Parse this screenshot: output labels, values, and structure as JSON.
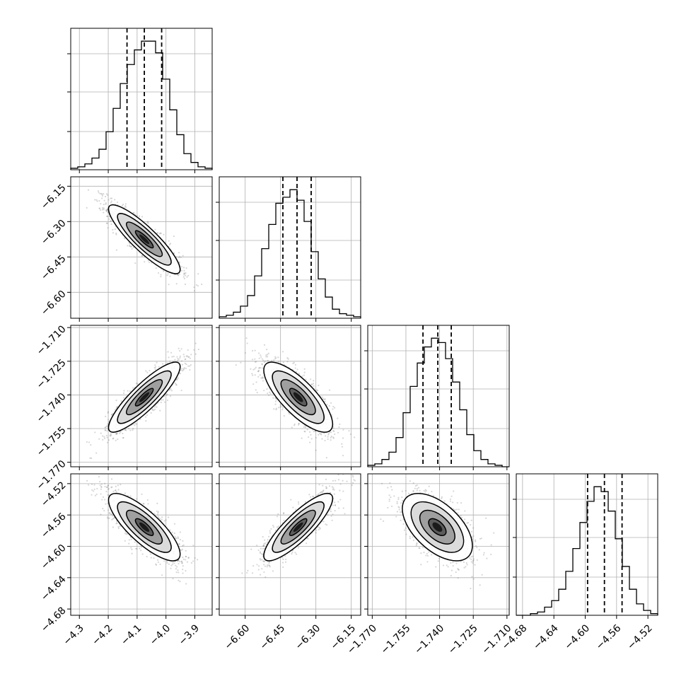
{
  "chart_data": {
    "type": "corner",
    "grid": true,
    "parameters": [
      {
        "name": "",
        "lim": [
          -4.33,
          -3.84
        ],
        "ticks": [
          -4.3,
          -4.2,
          -4.1,
          -4.0,
          -3.9
        ],
        "tick_labels": [
          "−4.3",
          "−4.2",
          "−4.1",
          "−4.0",
          "−3.9"
        ],
        "quantiles": [
          -4.135,
          -4.075,
          -4.015
        ]
      },
      {
        "name": "",
        "lim": [
          -6.71,
          -6.11
        ],
        "ticks": [
          -6.6,
          -6.45,
          -6.3,
          -6.15
        ],
        "tick_labels": [
          "−6.60",
          "−6.45",
          "−6.30",
          "−6.15"
        ],
        "quantiles": [
          -6.44,
          -6.38,
          -6.32
        ]
      },
      {
        "name": "",
        "lim": [
          -1.772,
          -1.709
        ],
        "ticks": [
          -1.77,
          -1.755,
          -1.74,
          -1.725,
          -1.71
        ],
        "tick_labels": [
          "−1.770",
          "−1.755",
          "−1.740",
          "−1.725",
          "−1.710"
        ],
        "quantiles": [
          -1.7474,
          -1.7408,
          -1.7348
        ]
      },
      {
        "name": "",
        "lim": [
          -4.688,
          -4.5075
        ],
        "ticks": [
          -4.68,
          -4.64,
          -4.6,
          -4.56,
          -4.52
        ],
        "tick_labels": [
          "−4.68",
          "−4.64",
          "−4.60",
          "−4.56",
          "−4.52"
        ],
        "quantiles": [
          -4.597,
          -4.5755,
          -4.553
        ]
      }
    ],
    "histograms": [
      {
        "param": 0,
        "bins": 20,
        "counts": [
          1,
          2,
          4,
          8,
          14,
          26,
          42,
          59,
          72,
          82,
          88,
          88,
          80,
          62,
          41,
          24,
          11,
          5,
          2,
          1
        ]
      },
      {
        "param": 1,
        "bins": 20,
        "counts": [
          1,
          2,
          4,
          8,
          15,
          28,
          46,
          62,
          76,
          80,
          85,
          78,
          64,
          44,
          26,
          14,
          6,
          3,
          2,
          1
        ]
      },
      {
        "param": 2,
        "bins": 20,
        "counts": [
          1,
          2,
          5,
          10,
          20,
          37,
          55,
          71,
          82,
          88,
          85,
          74,
          58,
          39,
          22,
          11,
          5,
          2,
          1,
          0
        ]
      },
      {
        "param": 3,
        "bins": 20,
        "counts": [
          0,
          0,
          1,
          2,
          5,
          9,
          16,
          27,
          41,
          57,
          70,
          79,
          76,
          64,
          47,
          30,
          16,
          7,
          3,
          1
        ]
      }
    ],
    "pairs": [
      {
        "x": 0,
        "y": 1,
        "center": [
          -4.075,
          -6.375
        ],
        "sigma": [
          0.062,
          0.073
        ],
        "rho": -0.88
      },
      {
        "x": 0,
        "y": 2,
        "center": [
          -4.075,
          -1.741
        ],
        "sigma": [
          0.062,
          0.0078
        ],
        "rho": 0.87
      },
      {
        "x": 1,
        "y": 2,
        "center": [
          -6.375,
          -1.741
        ],
        "sigma": [
          0.073,
          0.0078
        ],
        "rho": -0.77
      },
      {
        "x": 0,
        "y": 3,
        "center": [
          -4.075,
          -4.5755
        ],
        "sigma": [
          0.062,
          0.0215
        ],
        "rho": -0.8
      },
      {
        "x": 1,
        "y": 3,
        "center": [
          -6.375,
          -4.5755
        ],
        "sigma": [
          0.073,
          0.0215
        ],
        "rho": 0.85
      },
      {
        "x": 2,
        "y": 3,
        "center": [
          -1.741,
          -4.5755
        ],
        "sigma": [
          0.0078,
          0.0215
        ],
        "rho": -0.55
      }
    ],
    "contour_levels_sigma": [
      0.5,
      1.0,
      1.5,
      2.0
    ],
    "colors": {
      "line": "#000000",
      "points": "#6e6e6e",
      "grid": "#b0b0b0",
      "quantile": "#000000"
    }
  }
}
